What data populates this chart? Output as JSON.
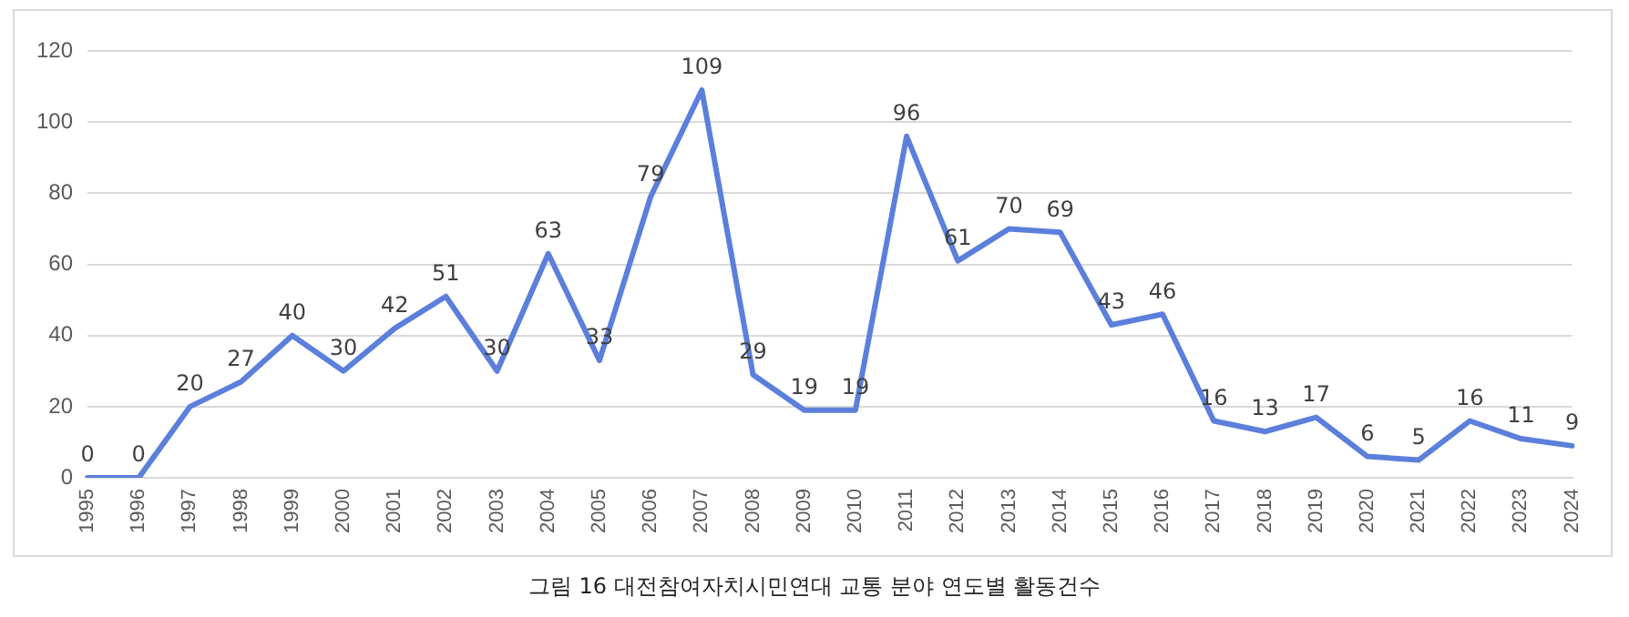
{
  "chart_data": {
    "type": "line",
    "categories": [
      "1995",
      "1996",
      "1997",
      "1998",
      "1999",
      "2000",
      "2001",
      "2002",
      "2003",
      "2004",
      "2005",
      "2006",
      "2007",
      "2008",
      "2009",
      "2010",
      "2011",
      "2012",
      "2013",
      "2014",
      "2015",
      "2016",
      "2017",
      "2018",
      "2019",
      "2020",
      "2021",
      "2022",
      "2023",
      "2024"
    ],
    "series": [
      {
        "color": "#5b7fdb",
        "values": [
          0,
          0,
          20,
          27,
          40,
          30,
          42,
          51,
          30,
          63,
          33,
          79,
          109,
          29,
          19,
          19,
          96,
          61,
          70,
          69,
          43,
          46,
          16,
          13,
          17,
          6,
          5,
          16,
          11,
          9
        ]
      }
    ],
    "ylim": [
      0,
      120
    ],
    "yticks": [
      0,
      20,
      40,
      60,
      80,
      100,
      120
    ],
    "grid": "y",
    "legend": false,
    "marker": "none",
    "data_labels": true,
    "annotations": [
      "그림 16 대전참여자치시민연대 교통 분야 연도별 활동건수"
    ]
  }
}
